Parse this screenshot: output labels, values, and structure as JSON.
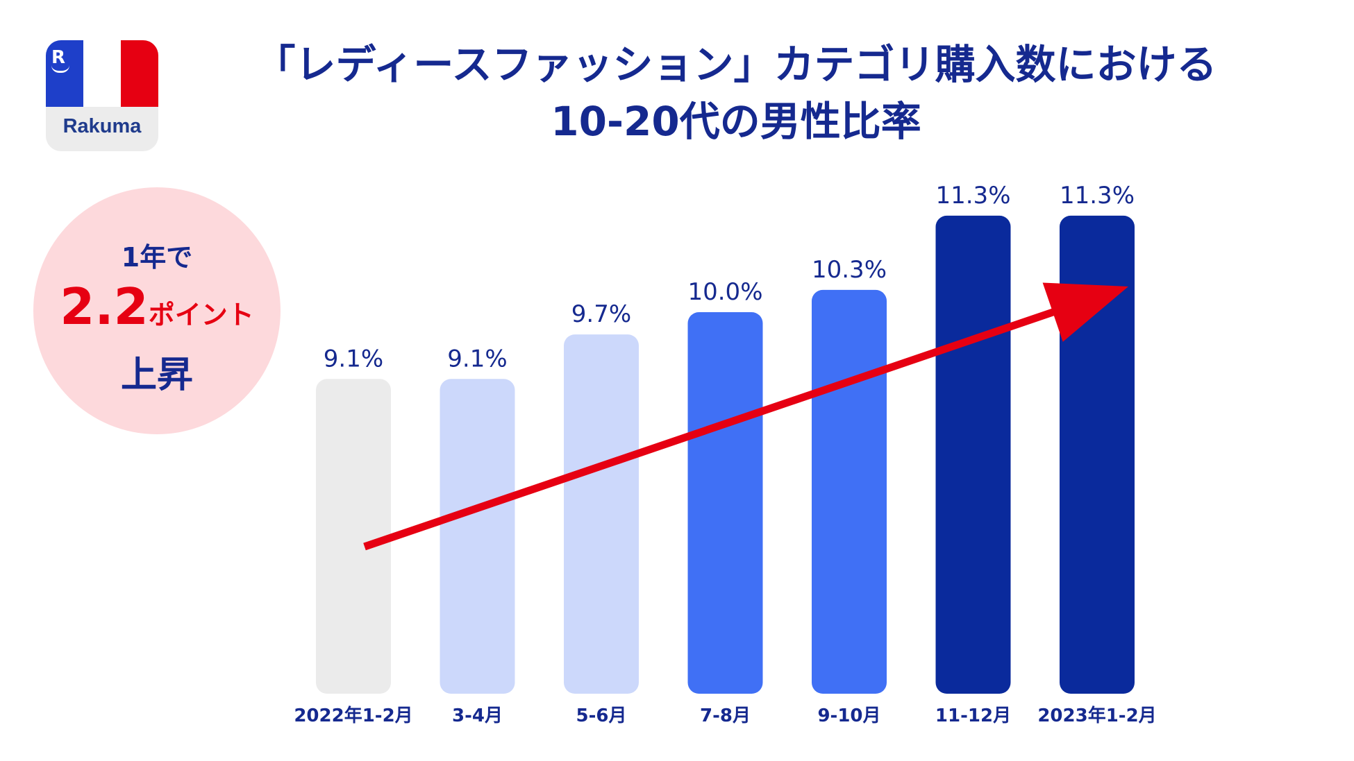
{
  "logo": {
    "mark": "R",
    "brand": "Rakuma"
  },
  "title": {
    "line1": "「レディースファッション」カテゴリ購入数における",
    "line2": "10-20代の男性比率"
  },
  "callout": {
    "line1": "1年で",
    "value": "2.2",
    "unit": "ポイント",
    "line3": "上昇"
  },
  "colors": {
    "title": "#15298f",
    "accent_red": "#e60012",
    "callout_bg": "#fdd9dc",
    "bar_gray": "#ebebeb",
    "bar_pale": "#ccd8fb",
    "bar_mid": "#4070f5",
    "bar_dark": "#0a2a9c"
  },
  "chart_data": {
    "type": "bar",
    "title": "「レディースファッション」カテゴリ購入数における10-20代の男性比率",
    "xlabel": "",
    "ylabel": "",
    "categories": [
      "2022年1-2月",
      "3-4月",
      "5-6月",
      "7-8月",
      "9-10月",
      "11-12月",
      "2023年1-2月"
    ],
    "values": [
      9.1,
      9.1,
      9.7,
      10.0,
      10.3,
      11.3,
      11.3
    ],
    "labels": [
      "9.1%",
      "9.1%",
      "9.7%",
      "10.0%",
      "10.3%",
      "11.3%",
      "11.3%"
    ],
    "bar_colors": [
      "#ebebeb",
      "#ccd8fb",
      "#ccd8fb",
      "#4070f5",
      "#4070f5",
      "#0a2a9c",
      "#0a2a9c"
    ],
    "trend_arrow": {
      "from_category": "2022年1-2月",
      "to_category": "2023年1-2月",
      "color": "#e60012"
    },
    "grid": false,
    "legend": "none"
  }
}
